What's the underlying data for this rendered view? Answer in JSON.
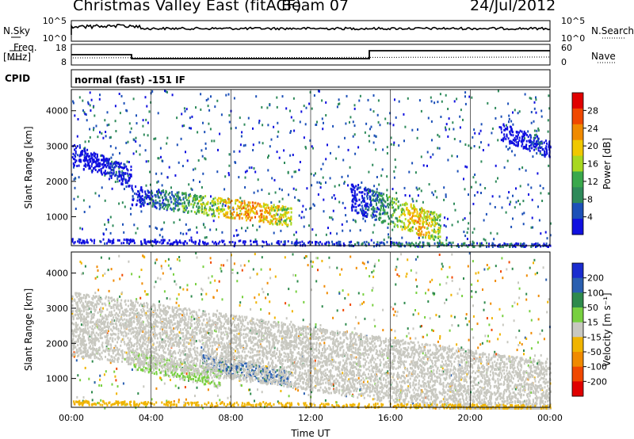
{
  "header": {
    "title": "Christmas Valley East (fitACF)",
    "beam": "Beam 07",
    "date": "24/Jul/2012"
  },
  "strips": {
    "nsky_label": "N.Sky",
    "nsky_ticks": [
      "10^5",
      "10^0"
    ],
    "nsearch_label": "N.Search",
    "nsearch_ticks": [
      "10^5",
      "10^0"
    ],
    "freq_label": "Freq.",
    "freq_unit": "[MHz]",
    "freq_ticks": [
      "18",
      "8"
    ],
    "nave_label": "Nave",
    "nave_ticks": [
      "60",
      "0"
    ],
    "cpid_label": "CPID",
    "cpid_text": "normal (fast) -151 IF"
  },
  "colors": {
    "power_scale": [
      "#1010e0",
      "#1c50b8",
      "#2e8a5a",
      "#3aa84c",
      "#a8d820",
      "#f0c800",
      "#f08a00",
      "#f04800",
      "#e00000"
    ],
    "velocity_scale": [
      "#1a2ccf",
      "#2a5fb0",
      "#2e8a4c",
      "#78d040",
      "#c8c8c0",
      "#f0b400",
      "#f08a00",
      "#f04800",
      "#e00000"
    ]
  },
  "chart_data": [
    {
      "type": "heatmap",
      "panel": "power",
      "ylabel": "Slant Range [km]",
      "xlabel": "",
      "x_ticks": [
        "00:00",
        "04:00",
        "08:00",
        "12:00",
        "16:00",
        "20:00",
        "00:00"
      ],
      "y_ticks": [
        "1000",
        "2000",
        "3000",
        "4000"
      ],
      "ylim": [
        180,
        4600
      ],
      "xlim_hours": [
        0,
        24
      ],
      "colorbar_label": "Power [dB]",
      "colorbar_ticks": [
        "28",
        "24",
        "20",
        "16",
        "12",
        "8",
        "4"
      ],
      "colorbar_range": [
        0,
        32
      ],
      "regions": [
        {
          "name": "main-echo",
          "t0": 3.0,
          "t1": 11.0,
          "r0": 900,
          "r1": 1900,
          "peak": 28
        },
        {
          "name": "evening-echo",
          "t0": 14.0,
          "t1": 18.5,
          "r0": 500,
          "r1": 2000,
          "peak": 26
        },
        {
          "name": "early-far",
          "t0": 0.0,
          "t1": 3.0,
          "r0": 2000,
          "r1": 3100,
          "peak": 10
        },
        {
          "name": "late-far",
          "t0": 21.5,
          "t1": 24.0,
          "r0": 2800,
          "r1": 3700,
          "peak": 10
        },
        {
          "name": "near-range",
          "t0": 0.0,
          "t1": 24.0,
          "r0": 180,
          "r1": 400,
          "peak": 14
        }
      ]
    },
    {
      "type": "heatmap",
      "panel": "velocity",
      "ylabel": "Slant Range [km]",
      "xlabel": "Time UT",
      "x_ticks": [
        "00:00",
        "04:00",
        "08:00",
        "12:00",
        "16:00",
        "20:00",
        "00:00"
      ],
      "y_ticks": [
        "1000",
        "2000",
        "3000",
        "4000"
      ],
      "ylim": [
        180,
        4600
      ],
      "xlim_hours": [
        0,
        24
      ],
      "colorbar_label": "Velocity [m s⁻¹]",
      "colorbar_ticks": [
        "200",
        "100",
        "50",
        "15",
        "-15",
        "-50",
        "-100",
        "-200"
      ],
      "colorbar_range": [
        -250,
        250
      ],
      "regions": [
        {
          "name": "main-echo-toward",
          "t0": 6.5,
          "t1": 11.0,
          "r0": 900,
          "r1": 1700,
          "velocity": 150
        },
        {
          "name": "main-echo-slow",
          "t0": 3.0,
          "t1": 7.5,
          "r0": 900,
          "r1": 1800,
          "velocity": 35
        },
        {
          "name": "ground-scatter",
          "t0": 0.0,
          "t1": 24.0,
          "r0": 180,
          "r1": 3500,
          "velocity": 0
        },
        {
          "name": "near-range-away",
          "t0": 0.0,
          "t1": 24.0,
          "r0": 180,
          "r1": 400,
          "velocity": -60
        }
      ]
    }
  ]
}
